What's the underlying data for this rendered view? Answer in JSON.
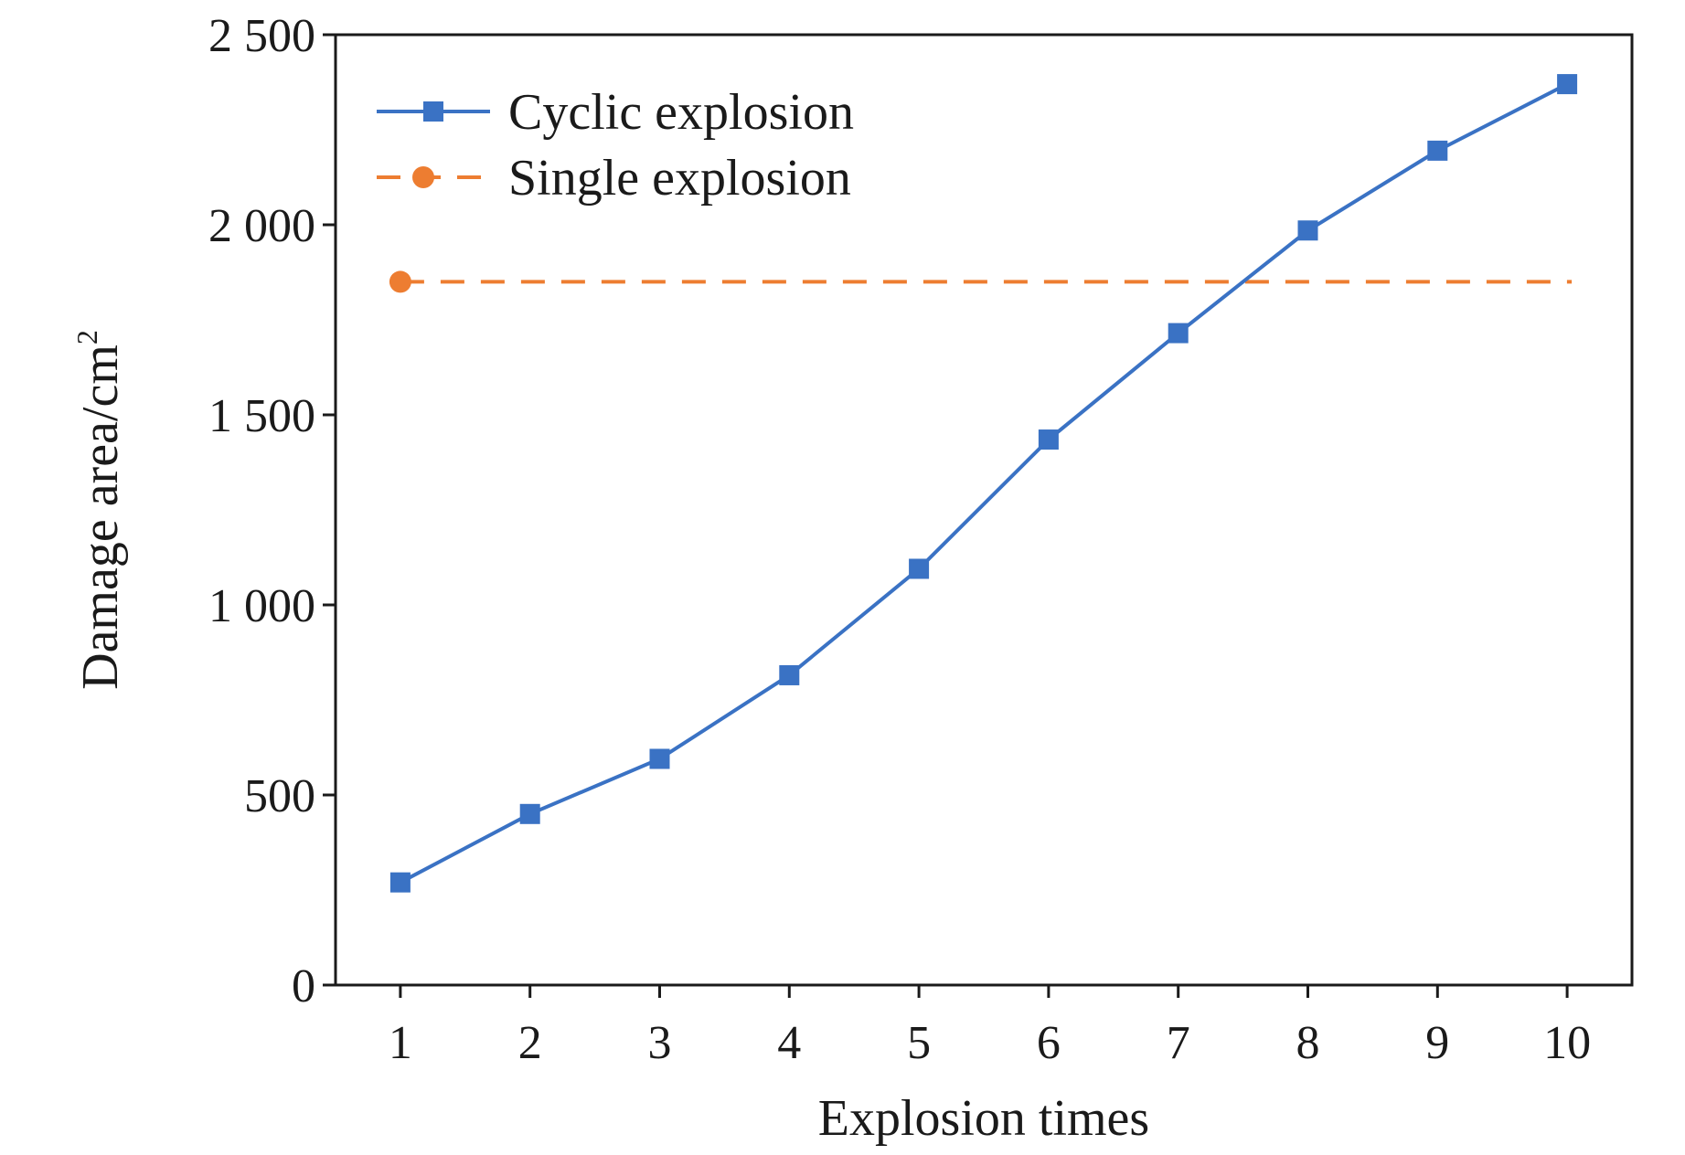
{
  "chart_data": {
    "type": "line",
    "title": "",
    "xlabel": "Explosion times",
    "ylabel": "Damage area/cm",
    "ylabel_superscript": "2",
    "xlim": [
      0.5,
      10.5
    ],
    "ylim": [
      0,
      2500
    ],
    "x_ticks": [
      1,
      2,
      3,
      4,
      5,
      6,
      7,
      8,
      9,
      10
    ],
    "x_tick_labels": [
      "1",
      "2",
      "3",
      "4",
      "5",
      "6",
      "7",
      "8",
      "9",
      "10"
    ],
    "y_ticks": [
      0,
      500,
      1000,
      1500,
      2000,
      2500
    ],
    "y_tick_labels": [
      "0",
      "500",
      "1 000",
      "1 500",
      "2 000",
      "2 500"
    ],
    "grid": false,
    "legend_position": "top-left",
    "series": [
      {
        "name": "Cyclic explosion",
        "style": "solid",
        "marker": "square",
        "color": "#3a72c4",
        "x": [
          1,
          2,
          3,
          4,
          5,
          6,
          7,
          8,
          9,
          10
        ],
        "values": [
          270,
          450,
          595,
          815,
          1095,
          1435,
          1715,
          1985,
          2195,
          2370
        ]
      },
      {
        "name": "Single explosion",
        "style": "dashed",
        "marker": "circle",
        "color": "#ed7d31",
        "x": [
          1
        ],
        "values": [
          1850
        ],
        "reference_line_x_range": [
          1,
          10
        ]
      }
    ]
  }
}
